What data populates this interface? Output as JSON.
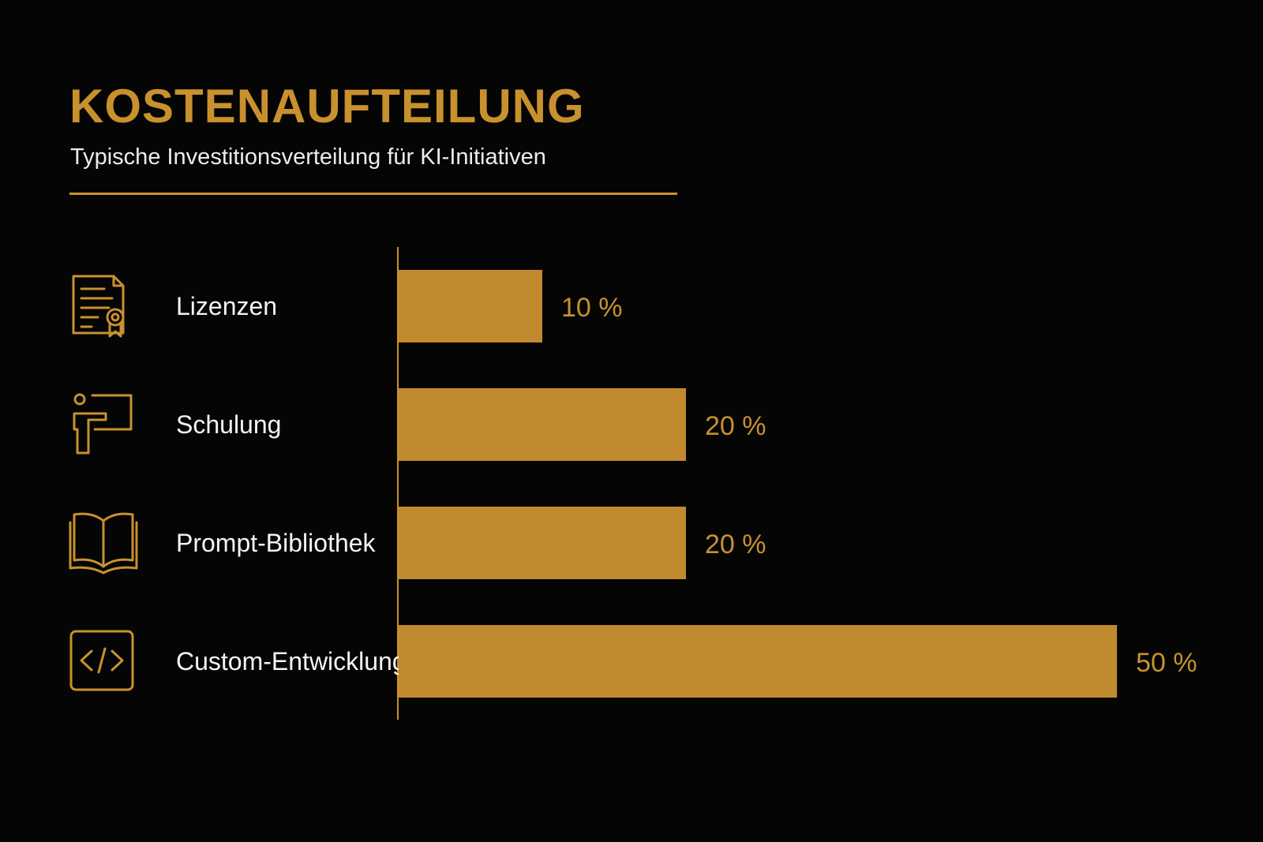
{
  "header": {
    "title": "KOSTENAUFTEILUNG",
    "subtitle": "Typische Investitionsverteilung für KI-Initiativen"
  },
  "colors": {
    "background": "#050505",
    "accent": "#c8912e",
    "bar": "#c18a2f",
    "text": "#f2f2f2"
  },
  "chart_data": {
    "type": "bar",
    "orientation": "horizontal",
    "title": "KOSTENAUFTEILUNG",
    "subtitle": "Typische Investitionsverteilung für KI-Initiativen",
    "categories": [
      "Lizenzen",
      "Schulung",
      "Prompt-Bibliothek",
      "Custom-Entwicklung"
    ],
    "values": [
      10,
      20,
      20,
      50
    ],
    "value_labels": [
      "10 %",
      "20 %",
      "20 %",
      "50 %"
    ],
    "icons": [
      "license-certificate-icon",
      "presentation-trainer-icon",
      "open-book-icon",
      "code-brackets-icon"
    ],
    "unit": "%",
    "xlim": [
      0,
      50
    ],
    "grid": false,
    "legend": "none"
  }
}
